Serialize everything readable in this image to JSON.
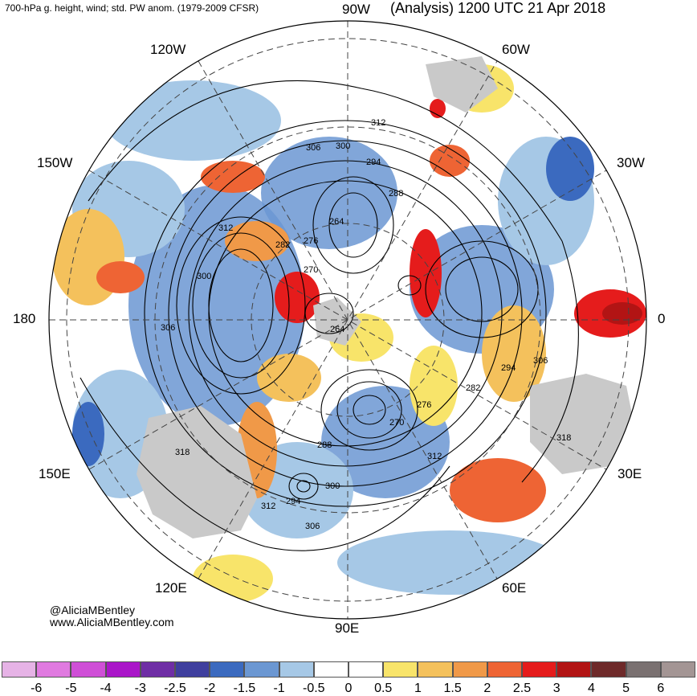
{
  "header": {
    "left": "700-hPa g. height, wind; std. PW anom. (1979-2009 CFSR)",
    "right": "(Analysis) 1200 UTC 21 Apr 2018"
  },
  "longitude_labels": {
    "top": "90W",
    "top_left": "120W",
    "top_right": "60W",
    "upper_left": "150W",
    "upper_right": "30W",
    "left": "180",
    "right": "0",
    "lower_left": "150E",
    "lower_right": "30E",
    "bottom_left": "120E",
    "bottom_right": "60E",
    "bottom": "90E"
  },
  "contour_labels": [
    "312",
    "306",
    "300",
    "294",
    "288",
    "264",
    "282",
    "276",
    "270",
    "300",
    "312",
    "306",
    "264",
    "306",
    "294",
    "282",
    "276",
    "270",
    "288",
    "318",
    "300",
    "294",
    "306",
    "312",
    "318",
    "312"
  ],
  "credit": {
    "handle": "@AliciaMBentley",
    "site": "www.AliciaMBentley.com"
  },
  "colorbar": {
    "colors": [
      "#e6b3e6",
      "#e07ae0",
      "#cf4fd7",
      "#aa16c9",
      "#6f2ea5",
      "#3f3f9e",
      "#3b6abf",
      "#6b97d2",
      "#a6c8e6",
      "#ffffff",
      "#ffffff",
      "#f8e46a",
      "#f4c15c",
      "#f09948",
      "#ee6434",
      "#e51c1c",
      "#b21414",
      "#6e2a2a",
      "#7a7171",
      "#a39594"
    ],
    "ticks": [
      "-6",
      "-5",
      "-4",
      "-3",
      "-2.5",
      "-2",
      "-1.5",
      "-1",
      "-0.5",
      "0",
      "0.5",
      "1",
      "1.5",
      "2",
      "2.5",
      "3",
      "4",
      "5",
      "6"
    ]
  }
}
